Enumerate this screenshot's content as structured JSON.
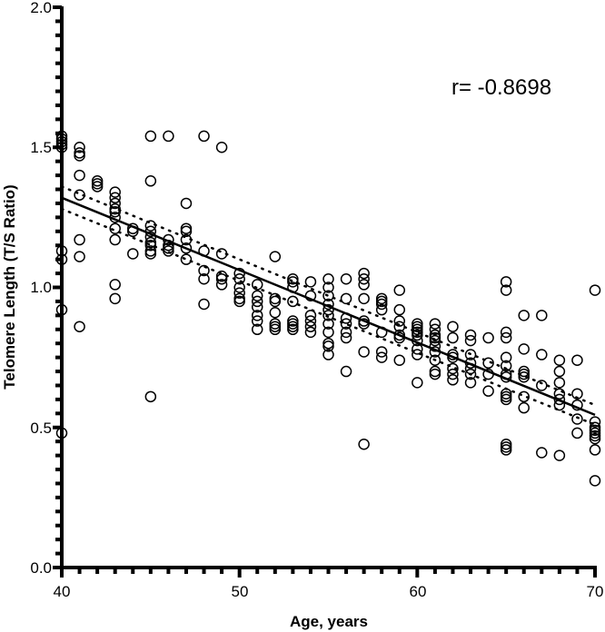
{
  "chart_data": {
    "type": "scatter",
    "title": "",
    "xlabel": "Age, years",
    "ylabel": "Telomere Length (T/S Ratio)",
    "xlim": [
      40,
      70
    ],
    "ylim": [
      0.0,
      2.0
    ],
    "x_ticks": [
      "40",
      "50",
      "60",
      "70"
    ],
    "y_ticks": [
      "0.0",
      "0.5",
      "1.0",
      "1.5",
      "2.0"
    ],
    "grid": false,
    "legend": null,
    "annotation": "r= -0.8698",
    "regression": {
      "x": [
        40,
        70
      ],
      "y": [
        1.32,
        0.545
      ],
      "ci_upper": [
        1.36,
        0.58
      ],
      "ci_lower": [
        1.28,
        0.51
      ]
    },
    "points": [
      [
        40,
        1.54
      ],
      [
        40,
        1.53
      ],
      [
        40,
        1.52
      ],
      [
        40,
        1.51
      ],
      [
        40,
        1.5
      ],
      [
        40,
        1.13
      ],
      [
        40,
        1.1
      ],
      [
        40,
        0.92
      ],
      [
        40,
        0.48
      ],
      [
        41,
        1.5
      ],
      [
        41,
        1.48
      ],
      [
        41,
        1.47
      ],
      [
        41,
        1.4
      ],
      [
        41,
        1.33
      ],
      [
        41,
        1.17
      ],
      [
        41,
        1.11
      ],
      [
        41,
        0.86
      ],
      [
        42,
        1.38
      ],
      [
        42,
        1.37
      ],
      [
        42,
        1.36
      ],
      [
        43,
        1.34
      ],
      [
        43,
        1.32
      ],
      [
        43,
        1.3
      ],
      [
        43,
        1.28
      ],
      [
        43,
        1.27
      ],
      [
        43,
        1.25
      ],
      [
        43,
        1.21
      ],
      [
        43,
        1.17
      ],
      [
        43,
        1.01
      ],
      [
        43,
        0.96
      ],
      [
        44,
        1.21
      ],
      [
        44,
        1.2
      ],
      [
        44,
        1.12
      ],
      [
        45,
        1.54
      ],
      [
        45,
        1.38
      ],
      [
        45,
        1.22
      ],
      [
        45,
        1.2
      ],
      [
        45,
        1.18
      ],
      [
        45,
        1.16
      ],
      [
        45,
        1.15
      ],
      [
        45,
        1.13
      ],
      [
        45,
        1.12
      ],
      [
        45,
        0.61
      ],
      [
        46,
        1.54
      ],
      [
        46,
        1.17
      ],
      [
        46,
        1.15
      ],
      [
        46,
        1.14
      ],
      [
        46,
        1.13
      ],
      [
        47,
        1.3
      ],
      [
        47,
        1.21
      ],
      [
        47,
        1.2
      ],
      [
        47,
        1.17
      ],
      [
        47,
        1.14
      ],
      [
        47,
        1.1
      ],
      [
        48,
        1.54
      ],
      [
        48,
        1.13
      ],
      [
        48,
        1.06
      ],
      [
        48,
        1.03
      ],
      [
        48,
        0.94
      ],
      [
        49,
        1.5
      ],
      [
        49,
        1.12
      ],
      [
        49,
        1.04
      ],
      [
        49,
        1.03
      ],
      [
        49,
        1.01
      ],
      [
        50,
        1.05
      ],
      [
        50,
        1.03
      ],
      [
        50,
        1.0
      ],
      [
        50,
        0.98
      ],
      [
        50,
        0.96
      ],
      [
        50,
        0.95
      ],
      [
        51,
        1.01
      ],
      [
        51,
        0.97
      ],
      [
        51,
        0.95
      ],
      [
        51,
        0.93
      ],
      [
        51,
        0.9
      ],
      [
        51,
        0.88
      ],
      [
        51,
        0.85
      ],
      [
        52,
        1.11
      ],
      [
        52,
        0.96
      ],
      [
        52,
        0.95
      ],
      [
        52,
        0.91
      ],
      [
        52,
        0.87
      ],
      [
        52,
        0.86
      ],
      [
        52,
        0.85
      ],
      [
        53,
        1.03
      ],
      [
        53,
        1.02
      ],
      [
        53,
        1.0
      ],
      [
        53,
        0.95
      ],
      [
        53,
        0.88
      ],
      [
        53,
        0.87
      ],
      [
        53,
        0.86
      ],
      [
        53,
        0.85
      ],
      [
        54,
        1.02
      ],
      [
        54,
        0.97
      ],
      [
        54,
        0.9
      ],
      [
        54,
        0.88
      ],
      [
        54,
        0.86
      ],
      [
        54,
        0.84
      ],
      [
        55,
        1.03
      ],
      [
        55,
        1.0
      ],
      [
        55,
        0.97
      ],
      [
        55,
        0.94
      ],
      [
        55,
        0.92
      ],
      [
        55,
        0.9
      ],
      [
        55,
        0.87
      ],
      [
        55,
        0.84
      ],
      [
        55,
        0.8
      ],
      [
        55,
        0.79
      ],
      [
        55,
        0.76
      ],
      [
        56,
        1.03
      ],
      [
        56,
        0.96
      ],
      [
        56,
        0.89
      ],
      [
        56,
        0.87
      ],
      [
        56,
        0.84
      ],
      [
        56,
        0.82
      ],
      [
        56,
        0.7
      ],
      [
        57,
        1.05
      ],
      [
        57,
        1.03
      ],
      [
        57,
        1.01
      ],
      [
        57,
        0.96
      ],
      [
        57,
        0.88
      ],
      [
        57,
        0.87
      ],
      [
        57,
        0.77
      ],
      [
        57,
        0.44
      ],
      [
        58,
        0.96
      ],
      [
        58,
        0.95
      ],
      [
        58,
        0.94
      ],
      [
        58,
        0.92
      ],
      [
        58,
        0.84
      ],
      [
        58,
        0.77
      ],
      [
        58,
        0.75
      ],
      [
        59,
        0.99
      ],
      [
        59,
        0.92
      ],
      [
        59,
        0.88
      ],
      [
        59,
        0.86
      ],
      [
        59,
        0.83
      ],
      [
        59,
        0.82
      ],
      [
        59,
        0.74
      ],
      [
        60,
        0.87
      ],
      [
        60,
        0.86
      ],
      [
        60,
        0.85
      ],
      [
        60,
        0.84
      ],
      [
        60,
        0.83
      ],
      [
        60,
        0.81
      ],
      [
        60,
        0.78
      ],
      [
        60,
        0.76
      ],
      [
        60,
        0.66
      ],
      [
        61,
        0.87
      ],
      [
        61,
        0.85
      ],
      [
        61,
        0.83
      ],
      [
        61,
        0.82
      ],
      [
        61,
        0.81
      ],
      [
        61,
        0.79
      ],
      [
        61,
        0.77
      ],
      [
        61,
        0.74
      ],
      [
        61,
        0.7
      ],
      [
        61,
        0.69
      ],
      [
        62,
        0.86
      ],
      [
        62,
        0.82
      ],
      [
        62,
        0.76
      ],
      [
        62,
        0.75
      ],
      [
        62,
        0.71
      ],
      [
        62,
        0.69
      ],
      [
        62,
        0.67
      ],
      [
        63,
        0.83
      ],
      [
        63,
        0.81
      ],
      [
        63,
        0.76
      ],
      [
        63,
        0.73
      ],
      [
        63,
        0.71
      ],
      [
        63,
        0.69
      ],
      [
        63,
        0.66
      ],
      [
        64,
        0.82
      ],
      [
        64,
        0.73
      ],
      [
        64,
        0.69
      ],
      [
        64,
        0.63
      ],
      [
        65,
        1.02
      ],
      [
        65,
        0.99
      ],
      [
        65,
        0.84
      ],
      [
        65,
        0.82
      ],
      [
        65,
        0.75
      ],
      [
        65,
        0.72
      ],
      [
        65,
        0.69
      ],
      [
        65,
        0.68
      ],
      [
        65,
        0.62
      ],
      [
        65,
        0.61
      ],
      [
        65,
        0.6
      ],
      [
        65,
        0.44
      ],
      [
        65,
        0.43
      ],
      [
        65,
        0.42
      ],
      [
        66,
        0.9
      ],
      [
        66,
        0.78
      ],
      [
        66,
        0.7
      ],
      [
        66,
        0.69
      ],
      [
        66,
        0.68
      ],
      [
        66,
        0.61
      ],
      [
        66,
        0.57
      ],
      [
        67,
        0.9
      ],
      [
        67,
        0.76
      ],
      [
        67,
        0.65
      ],
      [
        67,
        0.41
      ],
      [
        68,
        0.74
      ],
      [
        68,
        0.7
      ],
      [
        68,
        0.66
      ],
      [
        68,
        0.62
      ],
      [
        68,
        0.6
      ],
      [
        68,
        0.58
      ],
      [
        68,
        0.4
      ],
      [
        69,
        0.74
      ],
      [
        69,
        0.62
      ],
      [
        69,
        0.58
      ],
      [
        69,
        0.53
      ],
      [
        69,
        0.48
      ],
      [
        70,
        0.99
      ],
      [
        70,
        0.52
      ],
      [
        70,
        0.5
      ],
      [
        70,
        0.49
      ],
      [
        70,
        0.48
      ],
      [
        70,
        0.47
      ],
      [
        70,
        0.46
      ],
      [
        70,
        0.42
      ],
      [
        70,
        0.31
      ]
    ]
  }
}
